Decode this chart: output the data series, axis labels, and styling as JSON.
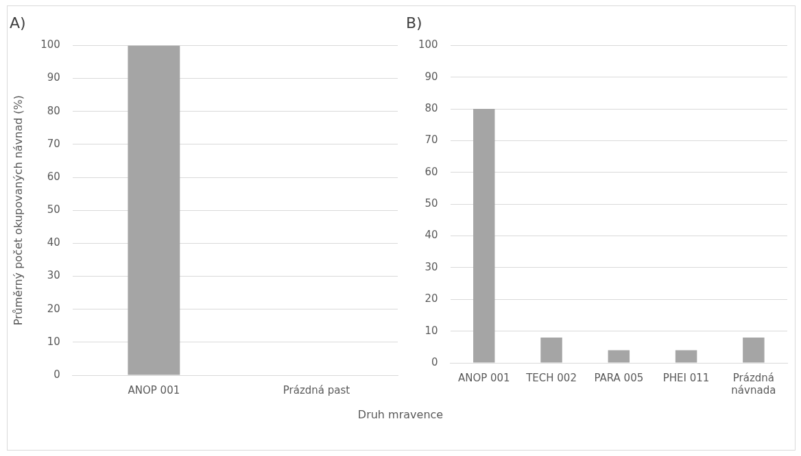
{
  "chart_data": [
    {
      "type": "bar",
      "title": "A)",
      "ylabel": "Průměrný počet okupovaných návnad (%)",
      "categories": [
        "ANOP 001",
        "Prázdná past"
      ],
      "values": [
        100,
        0
      ],
      "color": "#a5a5a5",
      "ylim": [
        0,
        100
      ],
      "yticks": [
        0,
        10,
        20,
        30,
        40,
        50,
        60,
        70,
        80,
        90,
        100
      ],
      "grid": "y"
    },
    {
      "type": "bar",
      "title": "B)",
      "xlabel": "Druh mravence",
      "categories": [
        "ANOP 001",
        "TECH 002",
        "PARA 005",
        "PHEI 011",
        "Prázdná návnada"
      ],
      "values": [
        80,
        8,
        4,
        4,
        8
      ],
      "color": "#a5a5a5",
      "ylim": [
        0,
        100
      ],
      "yticks": [
        0,
        10,
        20,
        30,
        40,
        50,
        60,
        70,
        80,
        90,
        100
      ],
      "grid": "y"
    }
  ]
}
